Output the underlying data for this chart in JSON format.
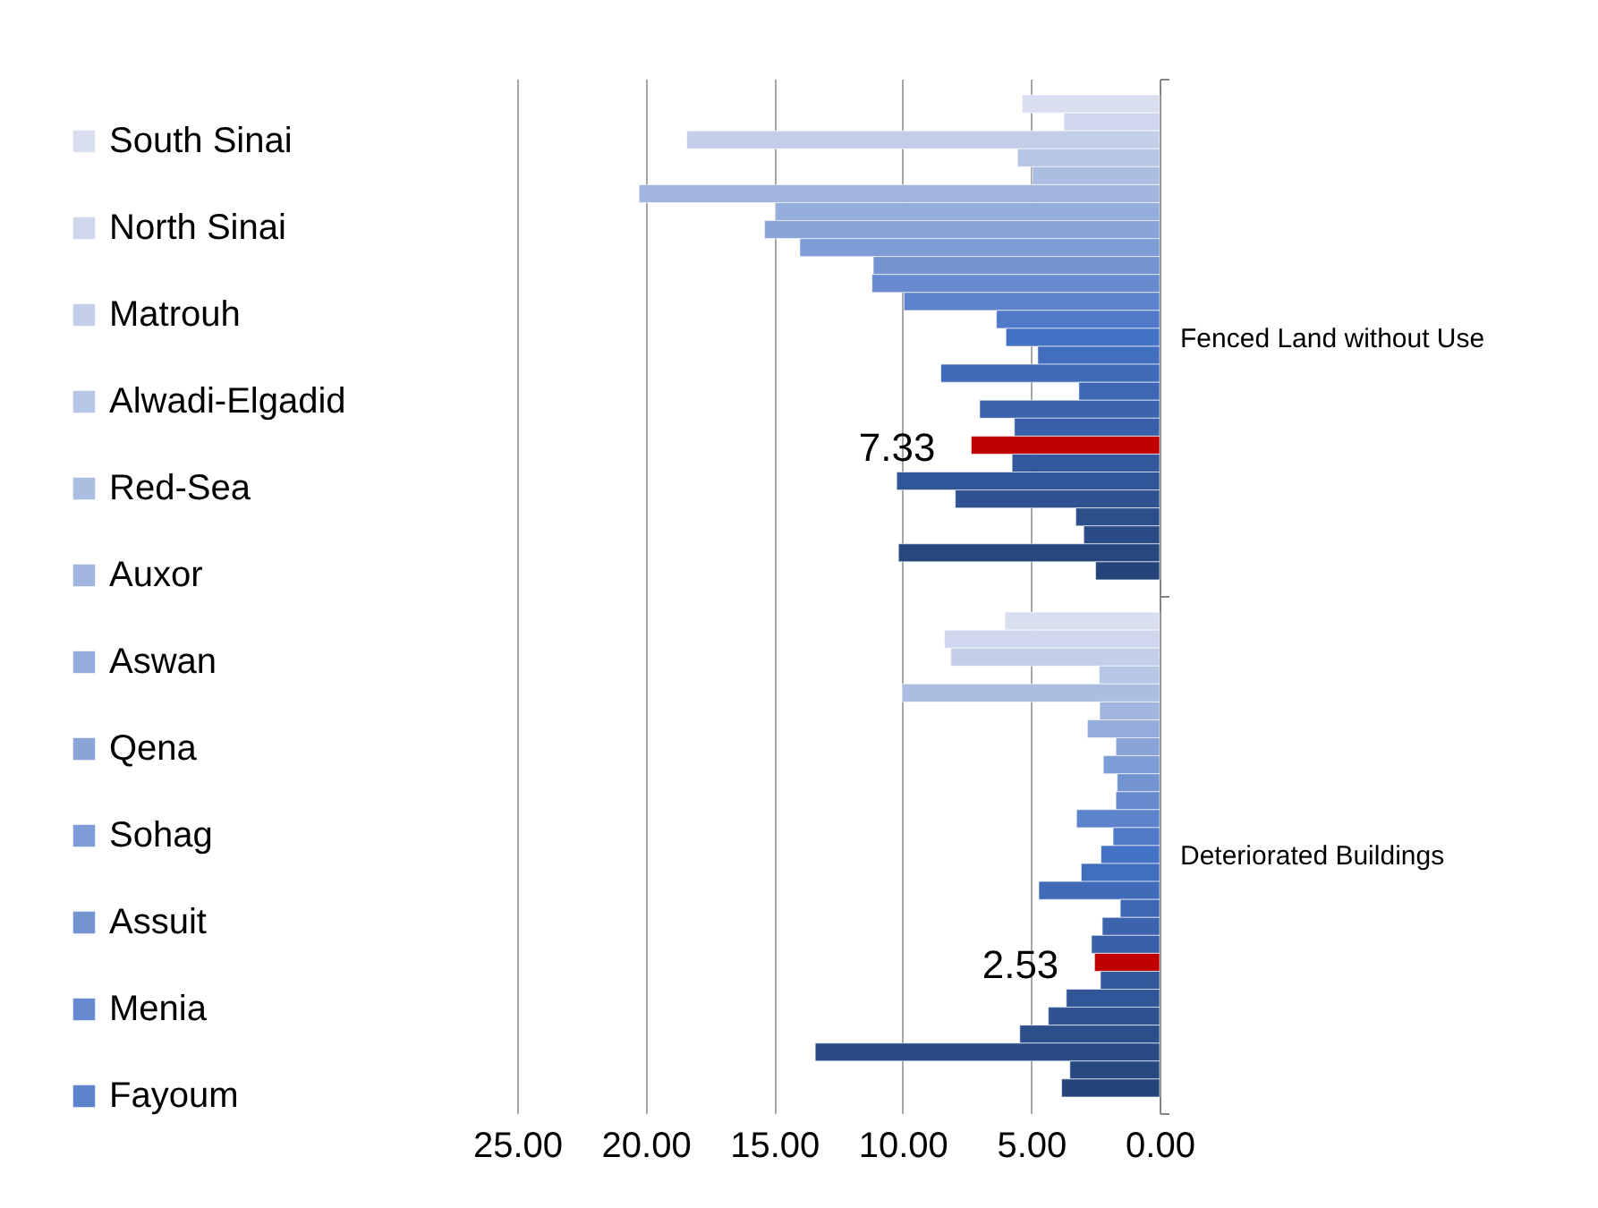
{
  "chart_data": {
    "type": "bar",
    "orientation": "horizontal",
    "categories": [
      "Fenced Land without Use",
      "Deteriorated Buildings"
    ],
    "xlim": [
      25,
      0
    ],
    "xticks": [
      {
        "value": 25,
        "label": "25.00"
      },
      {
        "value": 20,
        "label": "20.00"
      },
      {
        "value": 15,
        "label": "15.00"
      },
      {
        "value": 10,
        "label": "10.00"
      },
      {
        "value": 5,
        "label": "5.00"
      },
      {
        "value": 0,
        "label": "0.00"
      }
    ],
    "grid": "x",
    "legend": "left",
    "series": [
      {
        "name": "South Sinai",
        "color": "#dadff0",
        "values": [
          5.35,
          6.02
        ]
      },
      {
        "name": "North Sinai",
        "color": "#cfd7ed",
        "values": [
          3.72,
          8.37
        ]
      },
      {
        "name": "Matrouh",
        "color": "#c3cee9",
        "values": [
          18.4,
          8.12
        ]
      },
      {
        "name": "Alwadi-Elgadid",
        "color": "#b8c6e6",
        "values": [
          5.53,
          2.35
        ]
      },
      {
        "name": "Red-Sea",
        "color": "#acbde2",
        "values": [
          4.95,
          10.02
        ]
      },
      {
        "name": "Auxor",
        "color": "#a1b5df",
        "values": [
          20.26,
          2.33
        ]
      },
      {
        "name": "Aswan",
        "color": "#95addc",
        "values": [
          14.95,
          2.81
        ]
      },
      {
        "name": "Qena",
        "color": "#8aa4d8",
        "values": [
          15.37,
          1.7
        ]
      },
      {
        "name": "Sohag",
        "color": "#7e9cd5",
        "values": [
          14.0,
          2.19
        ]
      },
      {
        "name": "Assuit",
        "color": "#7393d1",
        "values": [
          11.14,
          1.65
        ]
      },
      {
        "name": "Menia",
        "color": "#678bce",
        "values": [
          11.19,
          1.7
        ]
      },
      {
        "name": "Fayoum",
        "color": "#5c83cb",
        "values": [
          9.95,
          3.23
        ]
      },
      {
        "color": "#507ac7",
        "values": [
          6.35,
          1.81
        ]
      },
      {
        "color": "#4472c4",
        "values": [
          5.98,
          2.28
        ]
      },
      {
        "color": "#426ebe",
        "values": [
          4.74,
          3.05
        ]
      },
      {
        "color": "#3f6bb9",
        "values": [
          8.51,
          4.7
        ]
      },
      {
        "color": "#3d67b3",
        "values": [
          3.14,
          1.53
        ]
      },
      {
        "color": "#3b64ad",
        "values": [
          7.0,
          2.23
        ]
      },
      {
        "color": "#3860a8",
        "values": [
          5.65,
          2.65
        ]
      },
      {
        "color": "#c00000",
        "values": [
          7.33,
          2.53
        ],
        "value_labels": [
          "7.33",
          "2.53"
        ]
      },
      {
        "color": "#33599c",
        "values": [
          5.74,
          2.3
        ]
      },
      {
        "color": "#315697",
        "values": [
          10.23,
          3.63
        ]
      },
      {
        "color": "#2f5291",
        "values": [
          7.95,
          4.33
        ]
      },
      {
        "color": "#2c4f8b",
        "values": [
          3.26,
          5.44
        ]
      },
      {
        "color": "#2a4b85",
        "values": [
          2.95,
          13.4
        ]
      },
      {
        "color": "#27487f",
        "values": [
          10.16,
          3.49
        ]
      },
      {
        "color": "#25447a",
        "values": [
          2.49,
          3.81
        ]
      }
    ]
  }
}
